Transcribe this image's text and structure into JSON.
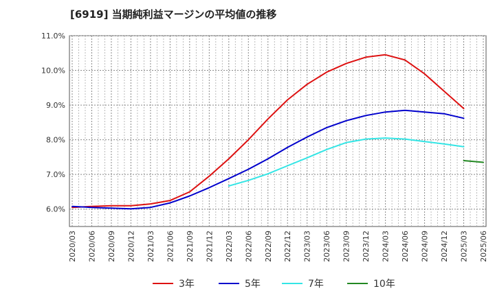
{
  "chart_data": {
    "type": "line",
    "title": "[6919]  当期純利益マージンの平均値の推移",
    "xlabel": "",
    "ylabel": "",
    "x": [
      "2020/03",
      "2020/06",
      "2020/09",
      "2020/12",
      "2021/03",
      "2021/06",
      "2021/09",
      "2021/12",
      "2022/03",
      "2022/06",
      "2022/09",
      "2022/12",
      "2023/03",
      "2023/06",
      "2023/09",
      "2023/12",
      "2024/03",
      "2024/06",
      "2024/09",
      "2024/12",
      "2025/03",
      "2025/06"
    ],
    "ylim": [
      5.5,
      11.0
    ],
    "yticks": [
      6.0,
      7.0,
      8.0,
      9.0,
      10.0,
      11.0
    ],
    "ytick_labels": [
      "6.0%",
      "7.0%",
      "8.0%",
      "9.0%",
      "10.0%",
      "11.0%"
    ],
    "grid": true,
    "legend_position": "bottom",
    "series": [
      {
        "name": "3年",
        "color": "#dd1111",
        "values": [
          6.05,
          6.08,
          6.1,
          6.1,
          6.15,
          6.25,
          6.5,
          6.95,
          7.45,
          8.0,
          8.6,
          9.15,
          9.6,
          9.95,
          10.2,
          10.38,
          10.45,
          10.3,
          9.9,
          9.4,
          8.9,
          null
        ]
      },
      {
        "name": "5年",
        "color": "#0000cc",
        "values": [
          6.08,
          6.05,
          6.03,
          6.01,
          6.05,
          6.18,
          6.38,
          6.62,
          6.88,
          7.15,
          7.45,
          7.78,
          8.08,
          8.35,
          8.55,
          8.7,
          8.8,
          8.85,
          8.8,
          8.75,
          8.62,
          null
        ]
      },
      {
        "name": "7年",
        "color": "#33e5e5",
        "values": [
          null,
          null,
          null,
          null,
          null,
          null,
          null,
          null,
          6.67,
          6.83,
          7.02,
          7.25,
          7.48,
          7.72,
          7.92,
          8.02,
          8.05,
          8.02,
          7.95,
          7.88,
          7.8,
          null
        ]
      },
      {
        "name": "10年",
        "color": "#228822",
        "values": [
          null,
          null,
          null,
          null,
          null,
          null,
          null,
          null,
          null,
          null,
          null,
          null,
          null,
          null,
          null,
          null,
          null,
          null,
          null,
          null,
          7.4,
          7.35
        ]
      }
    ],
    "last_point_offsets": {
      "10年": [
        null,
        null
      ]
    }
  }
}
